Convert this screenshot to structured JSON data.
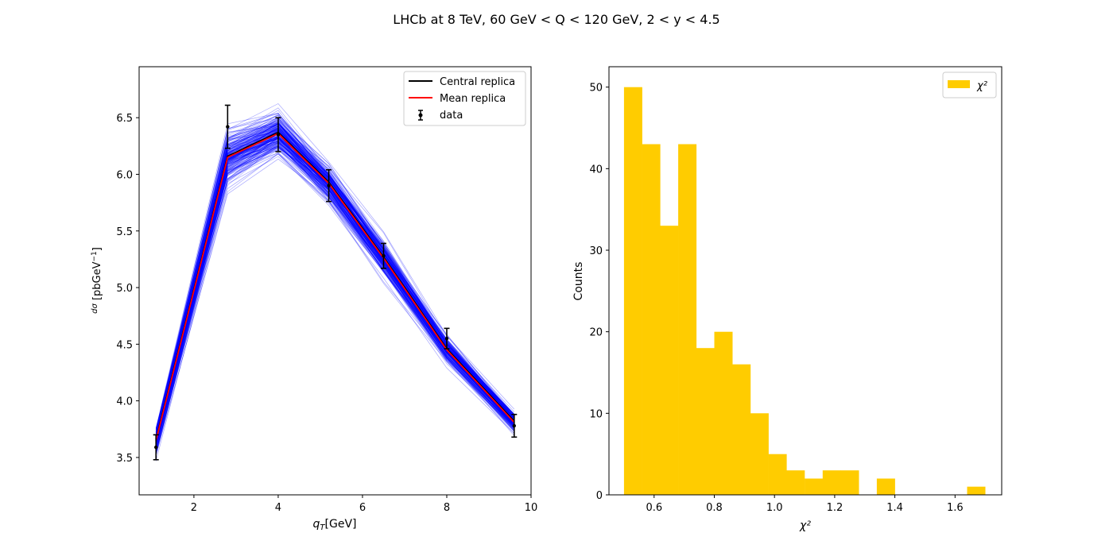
{
  "figure": {
    "suptitle": "LHCb at 8 TeV, 60 GeV < Q < 120 GeV, 2 < y < 4.5"
  },
  "chart_data": [
    {
      "type": "line",
      "xlabel": "q_T [GeV]",
      "ylabel": "dσ/dq_T [pb GeV^-1]",
      "xlim": [
        0.7,
        10.0
      ],
      "ylim": [
        3.17,
        6.95
      ],
      "xticks": [
        2,
        4,
        6,
        8,
        10
      ],
      "yticks": [
        3.5,
        4.0,
        4.5,
        5.0,
        5.5,
        6.0,
        6.5
      ],
      "grid": false,
      "legend_position": "top-right",
      "legend": [
        "Central replica",
        "Mean replica",
        "data"
      ],
      "x": [
        1.1,
        2.8,
        4.0,
        5.2,
        6.5,
        8.0,
        9.6
      ],
      "series": [
        {
          "name": "Central replica",
          "color": "#000000",
          "values": [
            3.66,
            6.16,
            6.37,
            5.93,
            5.27,
            4.46,
            3.82
          ]
        },
        {
          "name": "Mean replica",
          "color": "#ff0000",
          "values": [
            3.65,
            6.15,
            6.36,
            5.92,
            5.26,
            4.45,
            3.81
          ]
        }
      ],
      "data": {
        "name": "data",
        "y": [
          3.59,
          6.42,
          6.35,
          5.9,
          5.28,
          4.55,
          3.78
        ],
        "err": [
          0.11,
          0.19,
          0.15,
          0.14,
          0.11,
          0.09,
          0.1
        ]
      },
      "replicas": {
        "color": "#0000ff",
        "count": 200,
        "spread": [
          0.1,
          0.2,
          0.16,
          0.14,
          0.13,
          0.1,
          0.08
        ]
      }
    },
    {
      "type": "bar",
      "subtype": "histogram",
      "xlabel": "χ²",
      "ylabel": "Counts",
      "xlim": [
        0.45,
        1.755
      ],
      "ylim": [
        0,
        52.5
      ],
      "xticks": [
        0.6,
        0.8,
        1.0,
        1.2,
        1.4,
        1.6
      ],
      "yticks": [
        0,
        10,
        20,
        30,
        40,
        50
      ],
      "grid": false,
      "legend_position": "top-right",
      "legend": [
        "χ²"
      ],
      "color": "#ffcc00",
      "bin_edges": [
        0.5,
        0.56,
        0.62,
        0.68,
        0.74,
        0.8,
        0.86,
        0.92,
        0.98,
        1.04,
        1.1,
        1.16,
        1.22,
        1.28,
        1.34,
        1.4,
        1.46,
        1.52,
        1.58,
        1.64,
        1.7
      ],
      "counts": [
        50,
        43,
        33,
        43,
        18,
        20,
        16,
        10,
        5,
        3,
        2,
        3,
        3,
        0,
        2,
        0,
        0,
        0,
        0,
        1
      ]
    }
  ]
}
